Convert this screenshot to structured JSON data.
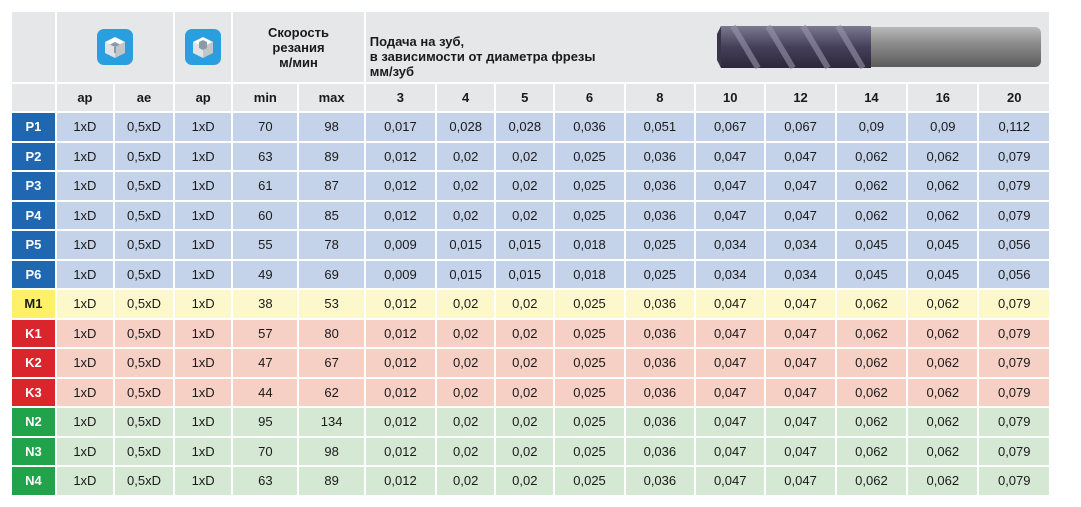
{
  "header": {
    "speed_title_lines": [
      "Скорость",
      "резания",
      "м/мин"
    ],
    "feed_title_lines": [
      "Подача на зуб,",
      "в зависимости от диаметра фрезы",
      "мм/зуб"
    ],
    "icons": [
      "cube-slot-icon",
      "cube-pocket-icon"
    ]
  },
  "columns": [
    "ap",
    "ae",
    "ap",
    "min",
    "max",
    "3",
    "4",
    "5",
    "6",
    "8",
    "10",
    "12",
    "14",
    "16",
    "20"
  ],
  "colors": {
    "header_bg": "#e6e7e8",
    "P_label": "#1f67b1",
    "P_row": "#c5d3ea",
    "M_label": "#fff06a",
    "M_row": "#fdf8cc",
    "K_label": "#d9262c",
    "K_row": "#f6cfc5",
    "N_label": "#21a34b",
    "N_row": "#d5e8d4",
    "icon_bg": "#2a9fe0"
  },
  "rows": [
    {
      "label": "P1",
      "group": "P",
      "cells": [
        "1xD",
        "0,5xD",
        "1xD",
        "70",
        "98",
        "0,017",
        "0,028",
        "0,028",
        "0,036",
        "0,051",
        "0,067",
        "0,067",
        "0,09",
        "0,09",
        "0,112"
      ]
    },
    {
      "label": "P2",
      "group": "P",
      "cells": [
        "1xD",
        "0,5xD",
        "1xD",
        "63",
        "89",
        "0,012",
        "0,02",
        "0,02",
        "0,025",
        "0,036",
        "0,047",
        "0,047",
        "0,062",
        "0,062",
        "0,079"
      ]
    },
    {
      "label": "P3",
      "group": "P",
      "cells": [
        "1xD",
        "0,5xD",
        "1xD",
        "61",
        "87",
        "0,012",
        "0,02",
        "0,02",
        "0,025",
        "0,036",
        "0,047",
        "0,047",
        "0,062",
        "0,062",
        "0,079"
      ]
    },
    {
      "label": "P4",
      "group": "P",
      "cells": [
        "1xD",
        "0,5xD",
        "1xD",
        "60",
        "85",
        "0,012",
        "0,02",
        "0,02",
        "0,025",
        "0,036",
        "0,047",
        "0,047",
        "0,062",
        "0,062",
        "0,079"
      ]
    },
    {
      "label": "P5",
      "group": "P",
      "cells": [
        "1xD",
        "0,5xD",
        "1xD",
        "55",
        "78",
        "0,009",
        "0,015",
        "0,015",
        "0,018",
        "0,025",
        "0,034",
        "0,034",
        "0,045",
        "0,045",
        "0,056"
      ]
    },
    {
      "label": "P6",
      "group": "P",
      "cells": [
        "1xD",
        "0,5xD",
        "1xD",
        "49",
        "69",
        "0,009",
        "0,015",
        "0,015",
        "0,018",
        "0,025",
        "0,034",
        "0,034",
        "0,045",
        "0,045",
        "0,056"
      ]
    },
    {
      "label": "M1",
      "group": "M",
      "cells": [
        "1xD",
        "0,5xD",
        "1xD",
        "38",
        "53",
        "0,012",
        "0,02",
        "0,02",
        "0,025",
        "0,036",
        "0,047",
        "0,047",
        "0,062",
        "0,062",
        "0,079"
      ]
    },
    {
      "label": "K1",
      "group": "K",
      "cells": [
        "1xD",
        "0,5xD",
        "1xD",
        "57",
        "80",
        "0,012",
        "0,02",
        "0,02",
        "0,025",
        "0,036",
        "0,047",
        "0,047",
        "0,062",
        "0,062",
        "0,079"
      ]
    },
    {
      "label": "K2",
      "group": "K",
      "cells": [
        "1xD",
        "0,5xD",
        "1xD",
        "47",
        "67",
        "0,012",
        "0,02",
        "0,02",
        "0,025",
        "0,036",
        "0,047",
        "0,047",
        "0,062",
        "0,062",
        "0,079"
      ]
    },
    {
      "label": "K3",
      "group": "K",
      "cells": [
        "1xD",
        "0,5xD",
        "1xD",
        "44",
        "62",
        "0,012",
        "0,02",
        "0,02",
        "0,025",
        "0,036",
        "0,047",
        "0,047",
        "0,062",
        "0,062",
        "0,079"
      ]
    },
    {
      "label": "N2",
      "group": "N",
      "cells": [
        "1xD",
        "0,5xD",
        "1xD",
        "95",
        "134",
        "0,012",
        "0,02",
        "0,02",
        "0,025",
        "0,036",
        "0,047",
        "0,047",
        "0,062",
        "0,062",
        "0,079"
      ]
    },
    {
      "label": "N3",
      "group": "N",
      "cells": [
        "1xD",
        "0,5xD",
        "1xD",
        "70",
        "98",
        "0,012",
        "0,02",
        "0,02",
        "0,025",
        "0,036",
        "0,047",
        "0,047",
        "0,062",
        "0,062",
        "0,079"
      ]
    },
    {
      "label": "N4",
      "group": "N",
      "cells": [
        "1xD",
        "0,5xD",
        "1xD",
        "63",
        "89",
        "0,012",
        "0,02",
        "0,02",
        "0,025",
        "0,036",
        "0,047",
        "0,047",
        "0,062",
        "0,062",
        "0,079"
      ]
    }
  ]
}
